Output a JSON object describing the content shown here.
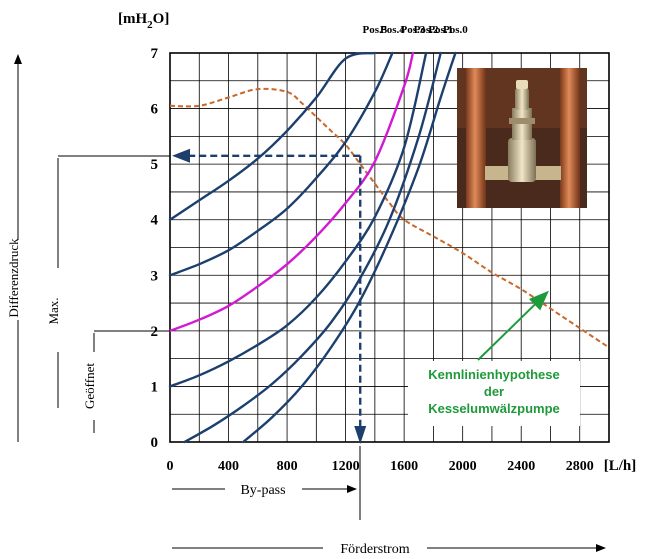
{
  "chart_data": {
    "type": "line",
    "title": "",
    "ylabel": "[mH2O]",
    "ylabel_parts": {
      "prefix": "[mH",
      "sub": "2",
      "suffix": "O]"
    },
    "xlabel": "[L/h]",
    "xlim": [
      0,
      3000
    ],
    "ylim": [
      0,
      7
    ],
    "grid": true,
    "x_ticks": [
      0,
      400,
      800,
      1200,
      1600,
      2000,
      2400,
      2800
    ],
    "y_ticks": [
      0,
      1,
      2,
      3,
      4,
      5,
      6,
      7
    ],
    "series": [
      {
        "name": "Pos.5",
        "color": "#1d3f6e",
        "x": [
          0,
          200,
          400,
          600,
          800,
          1000,
          1200,
          1400
        ],
        "y": [
          4.0,
          4.35,
          4.7,
          5.1,
          5.6,
          6.2,
          6.9,
          7.0
        ]
      },
      {
        "name": "Pos.4",
        "color": "#1d3f6e",
        "x": [
          0,
          200,
          400,
          600,
          800,
          1000,
          1200,
          1400,
          1520
        ],
        "y": [
          3.0,
          3.2,
          3.45,
          3.8,
          4.2,
          4.75,
          5.4,
          6.3,
          7.0
        ]
      },
      {
        "name": "Pos.3",
        "color": "#d11ad1",
        "x": [
          0,
          200,
          400,
          600,
          800,
          1000,
          1200,
          1400,
          1600,
          1660
        ],
        "y": [
          2.0,
          2.2,
          2.45,
          2.8,
          3.2,
          3.7,
          4.3,
          5.05,
          6.4,
          7.0
        ]
      },
      {
        "name": "Pos.2",
        "color": "#1d3f6e",
        "x": [
          0,
          200,
          400,
          600,
          800,
          1000,
          1200,
          1400,
          1600,
          1750
        ],
        "y": [
          1.0,
          1.2,
          1.45,
          1.75,
          2.1,
          2.6,
          3.25,
          4.05,
          5.3,
          7.0
        ]
      },
      {
        "name": "Pos.1",
        "color": "#1d3f6e",
        "x": [
          100,
          300,
          500,
          700,
          900,
          1100,
          1300,
          1500,
          1700,
          1850
        ],
        "y": [
          0,
          0.3,
          0.65,
          1.05,
          1.55,
          2.15,
          2.95,
          4.0,
          5.5,
          7.0
        ]
      },
      {
        "name": "Pos.0",
        "color": "#1d3f6e",
        "x": [
          500,
          700,
          900,
          1100,
          1300,
          1500,
          1700,
          1850,
          1950
        ],
        "y": [
          0,
          0.45,
          1.0,
          1.7,
          2.55,
          3.65,
          4.95,
          6.2,
          7.0
        ]
      }
    ],
    "pump_curve": {
      "name": "Kennlinienhypothese der Kesselumwälzpumpe",
      "color": "#c8692a",
      "x": [
        0,
        200,
        400,
        600,
        800,
        900,
        1000,
        1100,
        1200,
        1300,
        1400,
        1500,
        1600,
        1800,
        2000,
        2200,
        2400,
        2600,
        2800,
        3000
      ],
      "y": [
        6.05,
        6.05,
        6.2,
        6.35,
        6.3,
        6.1,
        5.85,
        5.6,
        5.35,
        5.0,
        4.65,
        4.3,
        4.0,
        3.7,
        3.4,
        3.05,
        2.75,
        2.4,
        2.05,
        1.7
      ]
    },
    "operating_point": {
      "x": 1300,
      "y": 5.15,
      "color": "#1d3f6e"
    },
    "annotation": {
      "lines": [
        "Kennlinienhypothese",
        "der",
        "Kesselumwälzpumpe"
      ],
      "color": "#1f9a3a",
      "arrow_to": {
        "x": 2600,
        "y": 2.75
      }
    }
  },
  "side_labels": {
    "differenzdruck": "Differenzdruck",
    "max": "Max.",
    "geoeffnet": "Geöffnet",
    "bypass": "By-pass",
    "foerderstrom": "Förderstrom"
  },
  "photo": {
    "icon": "valve-photo",
    "colors": {
      "pipe": "#c56a3a",
      "background": "#4a2a1c",
      "valve": "#d9c9a3"
    }
  }
}
